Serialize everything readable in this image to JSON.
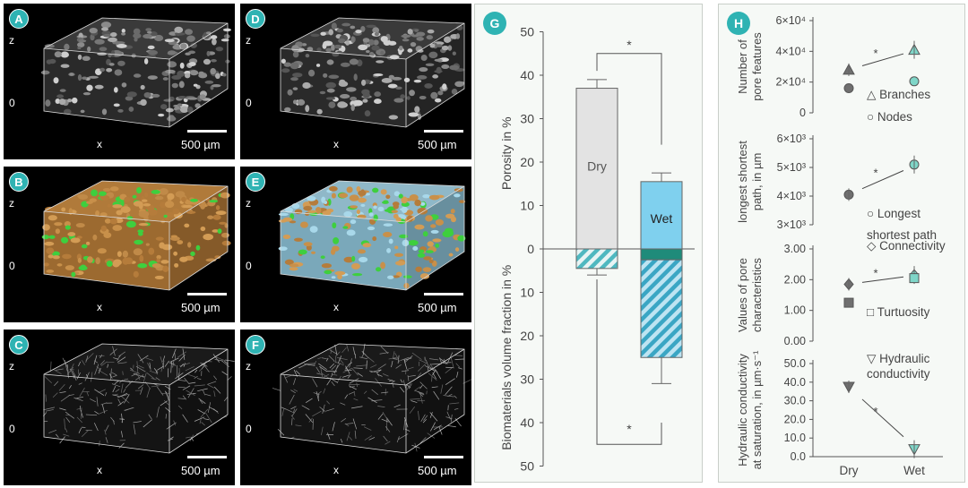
{
  "panels": [
    {
      "id": "A",
      "x_label": "x",
      "z_label": "z",
      "zero_label": "0",
      "scale": "500 µm",
      "kind": "gray"
    },
    {
      "id": "B",
      "x_label": "x",
      "z_label": "z",
      "zero_label": "0",
      "scale": "500 µm",
      "kind": "orange"
    },
    {
      "id": "C",
      "x_label": "x",
      "z_label": "z",
      "zero_label": "0",
      "scale": "500 µm",
      "kind": "network"
    },
    {
      "id": "D",
      "x_label": "x",
      "z_label": "z",
      "zero_label": "0",
      "scale": "500 µm",
      "kind": "gray"
    },
    {
      "id": "E",
      "x_label": "x",
      "z_label": "z",
      "zero_label": "0",
      "scale": "500 µm",
      "kind": "orange-blue"
    },
    {
      "id": "F",
      "x_label": "x",
      "z_label": "z",
      "zero_label": "0",
      "scale": "500 µm",
      "kind": "network"
    }
  ],
  "panel_g": {
    "badge": "G",
    "ylabel_top": "Porosity in %",
    "ylabel_bottom": "Biomaterials volume  fraction in %",
    "yticks": [
      50,
      40,
      30,
      20,
      10,
      0,
      10,
      20,
      30,
      40,
      50
    ],
    "significance": "*",
    "colors": {
      "dry": "#e3e3e3",
      "wet": "#7fd0ee",
      "hatch": "#4fb8c0",
      "wet_teal": "#1f8b7a"
    }
  },
  "panel_h": {
    "badge": "H",
    "x_categories": [
      "Dry",
      "Wet"
    ],
    "significance": "*",
    "subplots": [
      {
        "ylabel": [
          "Number of",
          "pore features"
        ],
        "ticks": [
          "6×10⁴",
          "4×10⁴",
          "2×10⁴",
          "0"
        ],
        "legend": [
          "△  Branches",
          "○  Nodes"
        ]
      },
      {
        "ylabel": [
          "longest shortest",
          "path, in µm"
        ],
        "ticks": [
          "6×10³",
          "5×10³",
          "4×10³",
          "3×10³"
        ],
        "legend": [
          "○  Longest",
          "     shortest path",
          "◇  Connectivity"
        ]
      },
      {
        "ylabel": [
          "Values of pore",
          "characteristics"
        ],
        "ticks": [
          "3.00",
          "2.00",
          "1.00",
          "0.00"
        ],
        "legend": [
          "□  Turtuosity"
        ]
      },
      {
        "ylabel": [
          "Hydraulic conductivity",
          "at saturation, in µm·s⁻¹"
        ],
        "ticks": [
          "50.0",
          "40.0",
          "30.0",
          "20.0",
          "10.0",
          "0.0"
        ],
        "legend": [
          "▽  Hydraulic",
          "     conductivity"
        ]
      }
    ]
  },
  "chart_data": [
    {
      "type": "bar",
      "title": "",
      "categories": [
        "Dry",
        "Wet"
      ],
      "series": [
        {
          "name": "Dry",
          "values": [
            37,
            4.5
          ],
          "error_high": [
            39,
            6
          ]
        },
        {
          "name": "Wet",
          "values": [
            15.5,
            25
          ],
          "error_high": [
            17.5,
            31
          ]
        }
      ],
      "ylabel": "Porosity in % / Biomaterials volume  fraction in %",
      "ylim": [
        -50,
        50
      ]
    },
    {
      "type": "scatter",
      "categories": [
        "Dry",
        "Wet"
      ],
      "subplots": [
        {
          "ylabel": "Number of pore features",
          "ylim": [
            0,
            60000
          ],
          "series": [
            {
              "name": "Branches",
              "values": [
                28000,
                41000
              ]
            },
            {
              "name": "Nodes",
              "values": [
                16000,
                20500
              ]
            }
          ]
        },
        {
          "ylabel": "longest shortest path, in µm",
          "ylim": [
            3000,
            6000
          ],
          "series": [
            {
              "name": "Longest shortest path",
              "values": [
                4050,
                5100
              ]
            }
          ]
        },
        {
          "ylabel": "Values of pore characteristics",
          "ylim": [
            0,
            3
          ],
          "series": [
            {
              "name": "Connectivity",
              "values": [
                1.85,
                2.15
              ]
            },
            {
              "name": "Turtuosity",
              "values": [
                1.25,
                2.05
              ]
            }
          ]
        },
        {
          "ylabel": "Hydraulic conductivity at saturation, in µm·s⁻¹",
          "ylim": [
            0,
            50
          ],
          "series": [
            {
              "name": "Hydraulic conductivity",
              "values": [
                37.5,
                4
              ]
            }
          ]
        }
      ]
    }
  ]
}
